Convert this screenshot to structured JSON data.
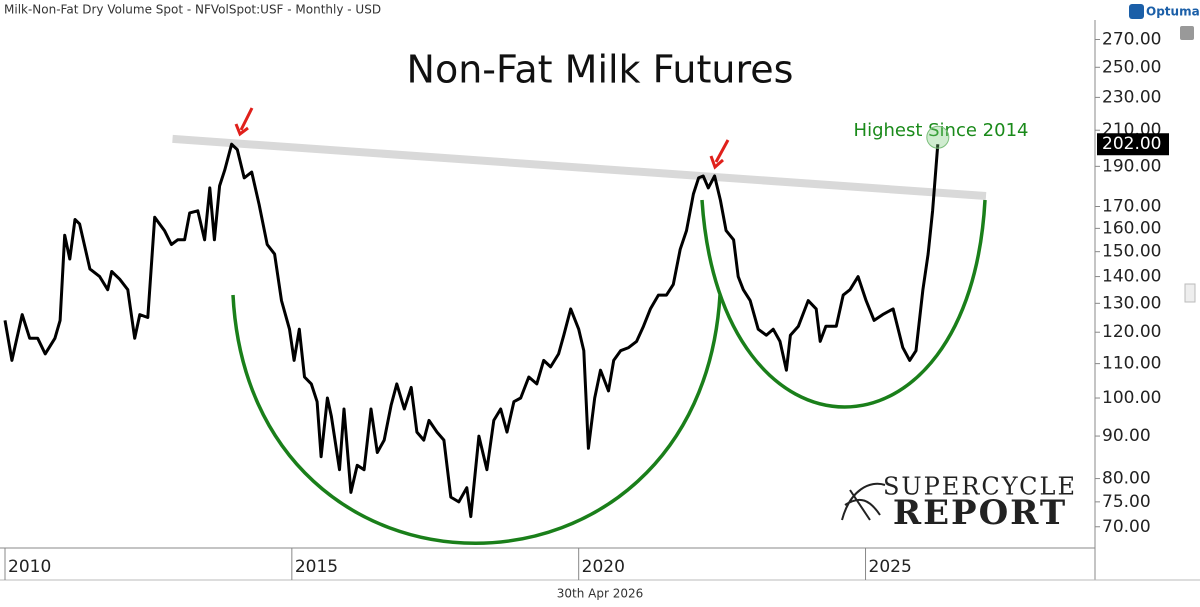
{
  "header": "Milk-Non-Fat Dry Volume Spot - NFVolSpot:USF - Monthly - USD",
  "logo": "Optuma",
  "date_label": "30th Apr 2026",
  "watermark": {
    "line1": "SUPERCYCLE",
    "line2": "REPORT"
  },
  "chart_data": {
    "type": "line",
    "title": "Non-Fat Milk Futures",
    "annotation": "Highest Since 2014",
    "last_value_label": "202.00",
    "log_y": true,
    "grid": false,
    "color": "#000000",
    "x": [
      2010.0,
      2010.12,
      2010.3,
      2010.43,
      2010.57,
      2010.7,
      2010.87,
      2010.96,
      2011.04,
      2011.13,
      2011.22,
      2011.3,
      2011.48,
      2011.65,
      2011.79,
      2011.86,
      2012.0,
      2012.14,
      2012.26,
      2012.35,
      2012.49,
      2012.61,
      2012.78,
      2012.9,
      2013.01,
      2013.13,
      2013.22,
      2013.36,
      2013.48,
      2013.57,
      2013.65,
      2013.74,
      2013.83,
      2013.95,
      2014.05,
      2014.17,
      2014.3,
      2014.43,
      2014.57,
      2014.7,
      2014.82,
      2014.96,
      2015.04,
      2015.13,
      2015.22,
      2015.34,
      2015.44,
      2015.51,
      2015.62,
      2015.69,
      2015.83,
      2015.91,
      2016.03,
      2016.14,
      2016.26,
      2016.38,
      2016.49,
      2016.61,
      2016.73,
      2016.83,
      2016.96,
      2017.08,
      2017.18,
      2017.3,
      2017.39,
      2017.53,
      2017.65,
      2017.77,
      2017.91,
      2018.05,
      2018.12,
      2018.26,
      2018.4,
      2018.52,
      2018.64,
      2018.75,
      2018.87,
      2018.99,
      2019.13,
      2019.27,
      2019.39,
      2019.51,
      2019.65,
      2019.74,
      2019.86,
      2020.0,
      2020.09,
      2020.17,
      2020.28,
      2020.38,
      2020.52,
      2020.61,
      2020.73,
      2020.87,
      2021.01,
      2021.13,
      2021.25,
      2021.39,
      2021.53,
      2021.65,
      2021.77,
      2021.88,
      2022.0,
      2022.09,
      2022.17,
      2022.26,
      2022.37,
      2022.47,
      2022.57,
      2022.7,
      2022.78,
      2022.87,
      2022.99,
      2023.13,
      2023.27,
      2023.39,
      2023.51,
      2023.62,
      2023.69,
      2023.83,
      2024.0,
      2024.14,
      2024.21,
      2024.31,
      2024.49,
      2024.61,
      2024.73,
      2024.87,
      2025.01,
      2025.15,
      2025.3,
      2025.48,
      2025.65,
      2025.77,
      2025.88,
      2026.0,
      2026.09,
      2026.17,
      2026.26
    ],
    "values": [
      124,
      111,
      126,
      118,
      118,
      113,
      118,
      124,
      157,
      147,
      164,
      162,
      143,
      140,
      135,
      142,
      139,
      135,
      118,
      126,
      125,
      165,
      159,
      153,
      155,
      155,
      167,
      168,
      155,
      179,
      155,
      180,
      188,
      202,
      199,
      184,
      187,
      171,
      153,
      149,
      131,
      121,
      111,
      121,
      106,
      104,
      99,
      85,
      100,
      95,
      82,
      97,
      77,
      83,
      82,
      97,
      86,
      89,
      98,
      104,
      97,
      103,
      91,
      89,
      94,
      91,
      89,
      76,
      75,
      78,
      72,
      90,
      82,
      94,
      97,
      91,
      99,
      100,
      106,
      104,
      111,
      109,
      113,
      119,
      128,
      121,
      114,
      87,
      100,
      108,
      102,
      111,
      114,
      115,
      117,
      122,
      128,
      133,
      133,
      137,
      151,
      159,
      176,
      184,
      185,
      179,
      185,
      173,
      159,
      155,
      140,
      135,
      131,
      121,
      119,
      121,
      117,
      108,
      119,
      122,
      131,
      128,
      117,
      122,
      122,
      133,
      135,
      140,
      131,
      124,
      126,
      128,
      115,
      111,
      114,
      135,
      149,
      168,
      202
    ],
    "trendline": {
      "x": [
        2012.92,
        2027.1
      ],
      "values": [
        205,
        175
      ],
      "color": "#d9d9d9"
    },
    "xlim": [
      2010,
      2029
    ],
    "xticks": [
      2010,
      2015,
      2020,
      2025
    ],
    "ylim": [
      66,
      285
    ],
    "yticks": [
      {
        "value": 70,
        "label": "70.00"
      },
      {
        "value": 75,
        "label": "75.00"
      },
      {
        "value": 80,
        "label": "80.00"
      },
      {
        "value": 90,
        "label": "90.00"
      },
      {
        "value": 100,
        "label": "100.00"
      },
      {
        "value": 110,
        "label": "110.00"
      },
      {
        "value": 120,
        "label": "120.00"
      },
      {
        "value": 130,
        "label": "130.00"
      },
      {
        "value": 140,
        "label": "140.00"
      },
      {
        "value": 150,
        "label": "150.00"
      },
      {
        "value": 160,
        "label": "160.00"
      },
      {
        "value": 170,
        "label": "170.00"
      },
      {
        "value": 190,
        "label": "190.00"
      },
      {
        "value": 210,
        "label": "210.00"
      },
      {
        "value": 230,
        "label": "230.00"
      },
      {
        "value": 250,
        "label": "250.00"
      },
      {
        "value": 270,
        "label": "270.00"
      }
    ]
  }
}
